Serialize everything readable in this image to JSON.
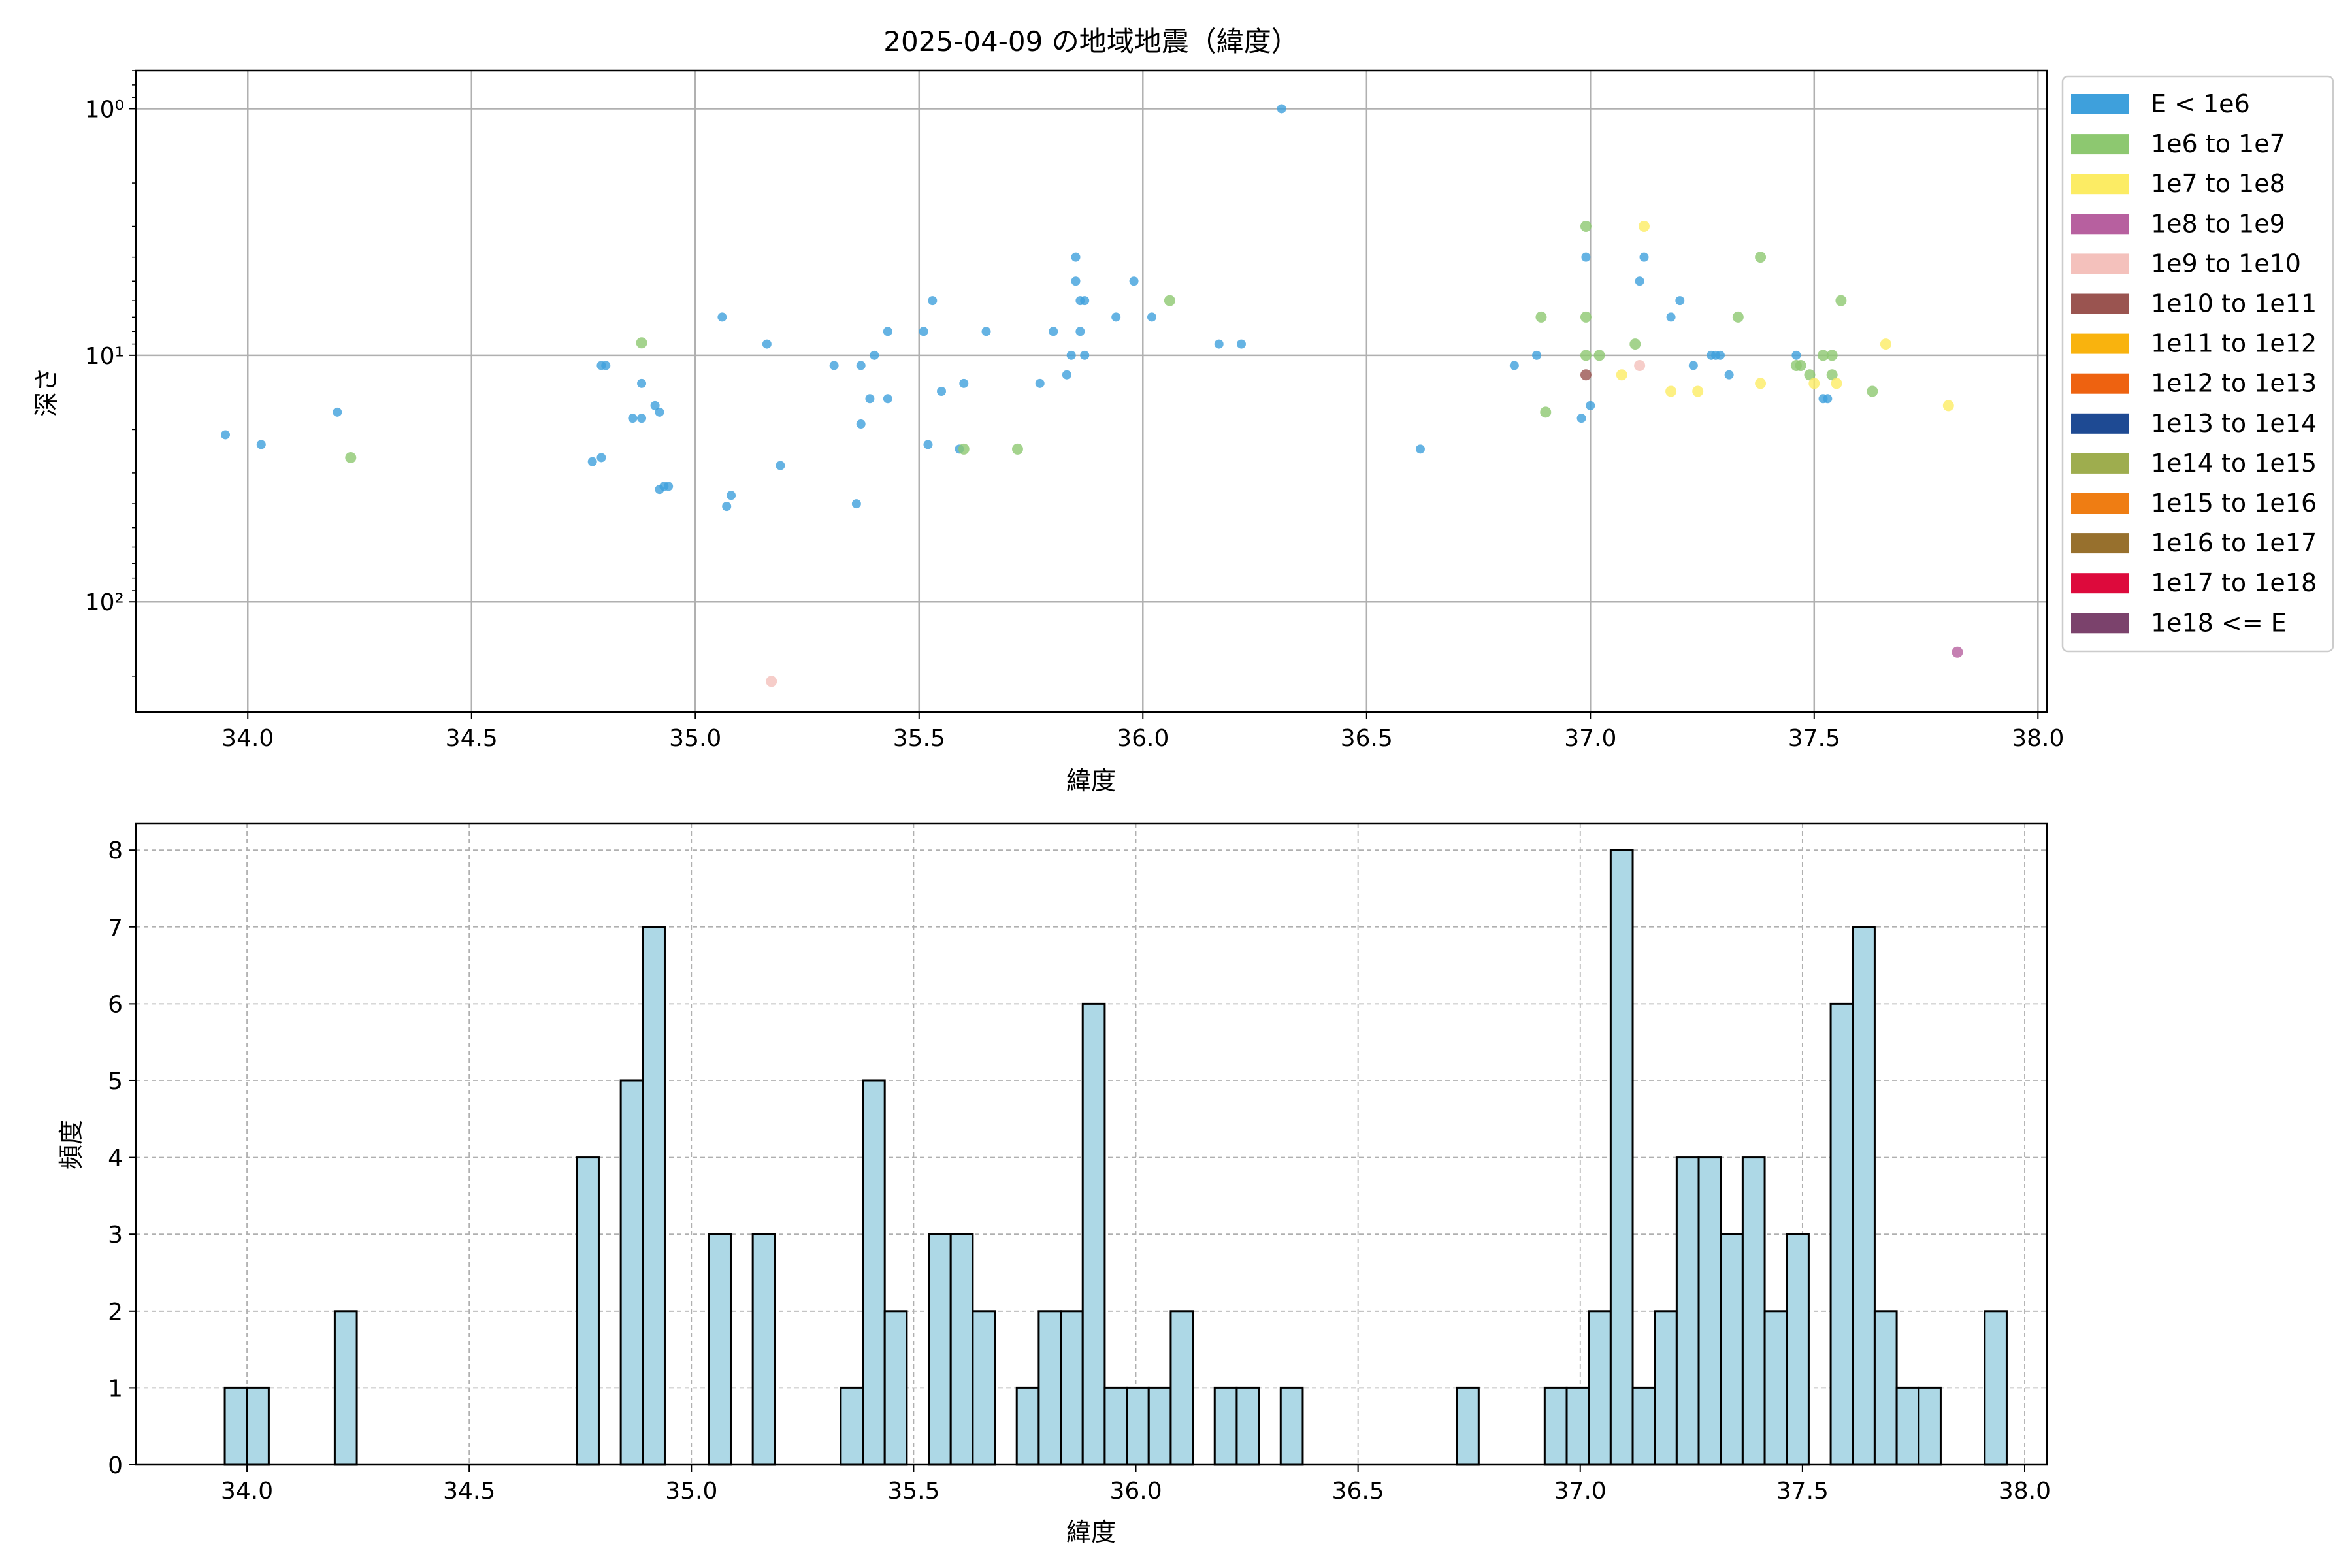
{
  "chart_data": [
    {
      "type": "scatter",
      "title": "2025-04-09 の地域地震（緯度）",
      "xlabel": "緯度",
      "ylabel": "深さ",
      "xlim": [
        33.75,
        38.02
      ],
      "ylim": [
        280,
        0.7
      ],
      "y_scale": "log",
      "y_inverted": true,
      "x_ticks": [
        34.0,
        34.5,
        35.0,
        35.5,
        36.0,
        36.5,
        37.0,
        37.5,
        38.0
      ],
      "x_tick_labels": [
        "34.0",
        "34.5",
        "35.0",
        "35.5",
        "36.0",
        "36.5",
        "37.0",
        "37.5",
        "38.0"
      ],
      "y_ticks": [
        1,
        10,
        100
      ],
      "y_tick_labels": [
        "10⁰",
        "10¹",
        "10²"
      ],
      "grid": true,
      "legend": {
        "placement": "outside-right",
        "entries": [
          {
            "label": "E < 1e6",
            "color": "#3ea0dc"
          },
          {
            "label": "1e6 to 1e7",
            "color": "#8dc870"
          },
          {
            "label": "1e7 to 1e8",
            "color": "#fcec64"
          },
          {
            "label": "1e8 to 1e9",
            "color": "#b7609f"
          },
          {
            "label": "1e9 to 1e10",
            "color": "#f4c1bc"
          },
          {
            "label": "1e10 to 1e11",
            "color": "#9a5450"
          },
          {
            "label": "1e11 to 1e12",
            "color": "#f9b30e"
          },
          {
            "label": "1e12 to 1e13",
            "color": "#ee6210"
          },
          {
            "label": "1e13 to 1e14",
            "color": "#1e4a93"
          },
          {
            "label": "1e14 to 1e15",
            "color": "#9ead4e"
          },
          {
            "label": "1e15 to 1e16",
            "color": "#ef7d13"
          },
          {
            "label": "1e16 to 1e17",
            "color": "#97702d"
          },
          {
            "label": "1e17 to 1e18",
            "color": "#dd0a3c"
          },
          {
            "label": "1e18 <= E",
            "color": "#7b426c"
          }
        ]
      },
      "points": [
        {
          "x": 33.95,
          "y": 21,
          "c": 0
        },
        {
          "x": 34.03,
          "y": 23,
          "c": 0
        },
        {
          "x": 34.2,
          "y": 17,
          "c": 0
        },
        {
          "x": 34.23,
          "y": 26,
          "c": 1
        },
        {
          "x": 34.77,
          "y": 27,
          "c": 0
        },
        {
          "x": 34.79,
          "y": 26,
          "c": 0
        },
        {
          "x": 34.79,
          "y": 11,
          "c": 0
        },
        {
          "x": 34.8,
          "y": 11,
          "c": 0
        },
        {
          "x": 34.86,
          "y": 18,
          "c": 0
        },
        {
          "x": 34.88,
          "y": 18,
          "c": 0
        },
        {
          "x": 34.88,
          "y": 13,
          "c": 0
        },
        {
          "x": 34.88,
          "y": 8.9,
          "c": 1
        },
        {
          "x": 34.91,
          "y": 16,
          "c": 0
        },
        {
          "x": 34.92,
          "y": 17,
          "c": 0
        },
        {
          "x": 34.92,
          "y": 35,
          "c": 0
        },
        {
          "x": 34.93,
          "y": 34,
          "c": 0
        },
        {
          "x": 34.94,
          "y": 34,
          "c": 0
        },
        {
          "x": 35.06,
          "y": 7,
          "c": 0
        },
        {
          "x": 35.07,
          "y": 41,
          "c": 0
        },
        {
          "x": 35.08,
          "y": 37,
          "c": 0
        },
        {
          "x": 35.16,
          "y": 9,
          "c": 0
        },
        {
          "x": 35.17,
          "y": 210,
          "c": 4
        },
        {
          "x": 35.19,
          "y": 28,
          "c": 0
        },
        {
          "x": 35.31,
          "y": 11,
          "c": 0
        },
        {
          "x": 35.36,
          "y": 40,
          "c": 0
        },
        {
          "x": 35.37,
          "y": 19,
          "c": 0
        },
        {
          "x": 35.37,
          "y": 11,
          "c": 0
        },
        {
          "x": 35.39,
          "y": 15,
          "c": 0
        },
        {
          "x": 35.4,
          "y": 10,
          "c": 0
        },
        {
          "x": 35.43,
          "y": 15,
          "c": 0
        },
        {
          "x": 35.43,
          "y": 8,
          "c": 0
        },
        {
          "x": 35.51,
          "y": 8,
          "c": 0
        },
        {
          "x": 35.52,
          "y": 23,
          "c": 0
        },
        {
          "x": 35.53,
          "y": 6,
          "c": 0
        },
        {
          "x": 35.55,
          "y": 14,
          "c": 0
        },
        {
          "x": 35.59,
          "y": 24,
          "c": 0
        },
        {
          "x": 35.6,
          "y": 24,
          "c": 1
        },
        {
          "x": 35.6,
          "y": 13,
          "c": 0
        },
        {
          "x": 35.65,
          "y": 8,
          "c": 0
        },
        {
          "x": 35.72,
          "y": 24,
          "c": 1
        },
        {
          "x": 35.77,
          "y": 13,
          "c": 0
        },
        {
          "x": 35.8,
          "y": 8,
          "c": 0
        },
        {
          "x": 35.83,
          "y": 12,
          "c": 0
        },
        {
          "x": 35.84,
          "y": 10,
          "c": 0
        },
        {
          "x": 35.85,
          "y": 4,
          "c": 0
        },
        {
          "x": 35.85,
          "y": 5,
          "c": 0
        },
        {
          "x": 35.86,
          "y": 6,
          "c": 0
        },
        {
          "x": 35.86,
          "y": 8,
          "c": 0
        },
        {
          "x": 35.87,
          "y": 6,
          "c": 0
        },
        {
          "x": 35.87,
          "y": 10,
          "c": 0
        },
        {
          "x": 35.94,
          "y": 7,
          "c": 0
        },
        {
          "x": 35.98,
          "y": 5,
          "c": 0
        },
        {
          "x": 36.02,
          "y": 7,
          "c": 0
        },
        {
          "x": 36.06,
          "y": 6,
          "c": 1
        },
        {
          "x": 36.17,
          "y": 9,
          "c": 0
        },
        {
          "x": 36.22,
          "y": 9,
          "c": 0
        },
        {
          "x": 36.31,
          "y": 1.0,
          "c": 0
        },
        {
          "x": 36.62,
          "y": 24,
          "c": 0
        },
        {
          "x": 36.83,
          "y": 11,
          "c": 0
        },
        {
          "x": 36.88,
          "y": 10,
          "c": 0
        },
        {
          "x": 36.89,
          "y": 7,
          "c": 1
        },
        {
          "x": 36.9,
          "y": 17,
          "c": 1
        },
        {
          "x": 36.98,
          "y": 18,
          "c": 0
        },
        {
          "x": 36.99,
          "y": 7,
          "c": 1
        },
        {
          "x": 36.99,
          "y": 3,
          "c": 1
        },
        {
          "x": 36.99,
          "y": 4,
          "c": 0
        },
        {
          "x": 36.99,
          "y": 10,
          "c": 1
        },
        {
          "x": 36.99,
          "y": 12,
          "c": 5
        },
        {
          "x": 37.0,
          "y": 16,
          "c": 0
        },
        {
          "x": 37.02,
          "y": 10,
          "c": 1
        },
        {
          "x": 37.07,
          "y": 12,
          "c": 2
        },
        {
          "x": 37.1,
          "y": 9,
          "c": 1
        },
        {
          "x": 37.11,
          "y": 11,
          "c": 4
        },
        {
          "x": 37.11,
          "y": 5,
          "c": 0
        },
        {
          "x": 37.12,
          "y": 3,
          "c": 2
        },
        {
          "x": 37.12,
          "y": 4,
          "c": 0
        },
        {
          "x": 37.18,
          "y": 7,
          "c": 0
        },
        {
          "x": 37.18,
          "y": 14,
          "c": 2
        },
        {
          "x": 37.2,
          "y": 6,
          "c": 0
        },
        {
          "x": 37.23,
          "y": 11,
          "c": 0
        },
        {
          "x": 37.24,
          "y": 14,
          "c": 2
        },
        {
          "x": 37.27,
          "y": 10,
          "c": 0
        },
        {
          "x": 37.28,
          "y": 10,
          "c": 0
        },
        {
          "x": 37.29,
          "y": 10,
          "c": 0
        },
        {
          "x": 37.31,
          "y": 12,
          "c": 0
        },
        {
          "x": 37.33,
          "y": 7,
          "c": 1
        },
        {
          "x": 37.38,
          "y": 4,
          "c": 1
        },
        {
          "x": 37.38,
          "y": 13,
          "c": 2
        },
        {
          "x": 37.46,
          "y": 10,
          "c": 0
        },
        {
          "x": 37.46,
          "y": 11,
          "c": 1
        },
        {
          "x": 37.47,
          "y": 11,
          "c": 1
        },
        {
          "x": 37.49,
          "y": 12,
          "c": 1
        },
        {
          "x": 37.5,
          "y": 13,
          "c": 2
        },
        {
          "x": 37.52,
          "y": 10,
          "c": 1
        },
        {
          "x": 37.52,
          "y": 15,
          "c": 0
        },
        {
          "x": 37.53,
          "y": 15,
          "c": 0
        },
        {
          "x": 37.54,
          "y": 12,
          "c": 1
        },
        {
          "x": 37.54,
          "y": 10,
          "c": 1
        },
        {
          "x": 37.55,
          "y": 13,
          "c": 2
        },
        {
          "x": 37.56,
          "y": 6,
          "c": 1
        },
        {
          "x": 37.63,
          "y": 14,
          "c": 1
        },
        {
          "x": 37.66,
          "y": 9,
          "c": 2
        },
        {
          "x": 37.8,
          "y": 16,
          "c": 2
        },
        {
          "x": 37.82,
          "y": 160,
          "c": 3
        }
      ]
    },
    {
      "type": "bar",
      "title": "",
      "xlabel": "緯度",
      "ylabel": "頻度",
      "xlim": [
        33.75,
        38.05
      ],
      "ylim": [
        0,
        8.35
      ],
      "x_ticks": [
        34.0,
        34.5,
        35.0,
        35.5,
        36.0,
        36.5,
        37.0,
        37.5,
        38.0
      ],
      "x_tick_labels": [
        "34.0",
        "34.5",
        "35.0",
        "35.5",
        "36.0",
        "36.5",
        "37.0",
        "37.5",
        "38.0"
      ],
      "y_ticks": [
        0,
        1,
        2,
        3,
        4,
        5,
        6,
        7,
        8
      ],
      "y_tick_labels": [
        "0",
        "1",
        "2",
        "3",
        "4",
        "5",
        "6",
        "7",
        "8"
      ],
      "grid": true,
      "bar_color": "#add8e6",
      "bin_start": 33.95,
      "bin_width": 0.0495,
      "values": [
        1,
        1,
        0,
        0,
        0,
        2,
        0,
        0,
        0,
        0,
        0,
        0,
        0,
        0,
        0,
        0,
        4,
        0,
        5,
        7,
        0,
        0,
        3,
        0,
        3,
        0,
        0,
        0,
        1,
        5,
        2,
        0,
        3,
        3,
        2,
        0,
        1,
        2,
        2,
        6,
        1,
        1,
        1,
        2,
        0,
        1,
        1,
        0,
        1,
        0,
        0,
        0,
        0,
        0,
        0,
        0,
        1,
        0,
        0,
        0,
        1,
        1,
        2,
        8,
        1,
        2,
        4,
        4,
        3,
        4,
        2,
        3,
        0,
        6,
        7,
        2,
        1,
        1,
        0,
        0,
        2
      ]
    }
  ]
}
